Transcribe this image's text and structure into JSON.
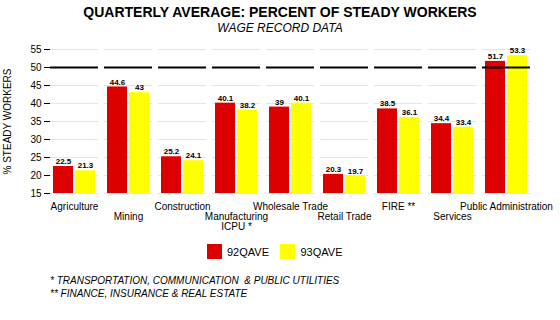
{
  "chart_data": {
    "type": "bar",
    "title": "QUARTERLY AVERAGE:  PERCENT OF STEADY WORKERS",
    "subtitle": "WAGE RECORD DATA",
    "ylabel": "% STEADY WORKERS",
    "categories": [
      "Agriculture",
      "Mining",
      "Construction",
      "Manufacturing\nICPU *",
      "Wholesale Trade",
      "Retail Trade",
      "FIRE **",
      "Services",
      "Public Administration"
    ],
    "series": [
      {
        "name": "92QAVE",
        "color": "#DD0000",
        "values": [
          22.5,
          44.6,
          25.2,
          40.1,
          39.0,
          20.3,
          38.5,
          34.4,
          51.7
        ]
      },
      {
        "name": "93QAVE",
        "color": "#FFFF00",
        "values": [
          21.3,
          43.0,
          24.1,
          38.2,
          40.1,
          19.7,
          36.1,
          33.4,
          53.3
        ]
      }
    ],
    "ylim": [
      15,
      55
    ],
    "yticks": [
      15,
      20,
      25,
      30,
      35,
      40,
      45,
      50,
      55
    ],
    "grid": true,
    "data_labels": true,
    "hline": 50,
    "legend": "bottom",
    "footnotes": [
      "* TRANSPORTATION, COMMUNICATION  & PUBLIC UTILITIES",
      "** FINANCE, INSURANCE & REAL ESTATE"
    ]
  }
}
